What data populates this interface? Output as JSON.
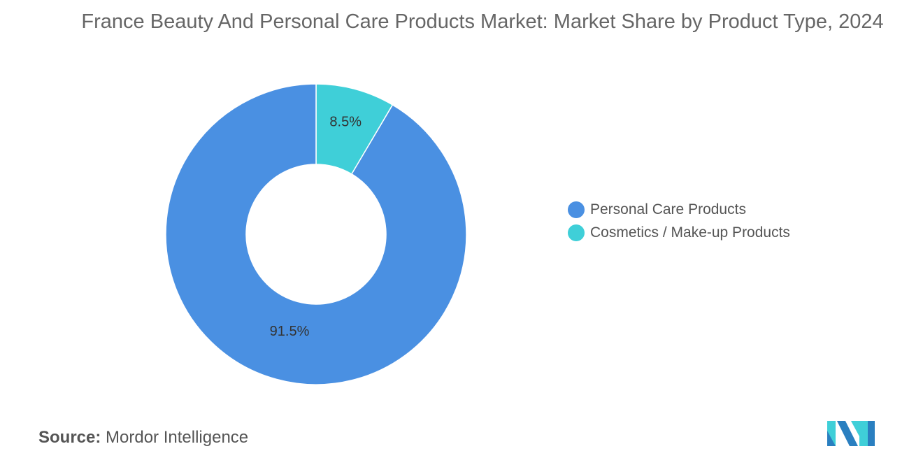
{
  "chart_data": {
    "type": "pie",
    "donut": true,
    "title": "France Beauty And Personal Care Products Market: Market Share by Product Type, 2024",
    "categories": [
      "Personal Care Products",
      "Cosmetics / Make-up Products"
    ],
    "values": [
      91.5,
      8.5
    ],
    "labels": [
      "91.5%",
      "8.5%"
    ],
    "colors": [
      "#4a90e2",
      "#3fcfd8"
    ],
    "legend_position": "right"
  },
  "source": {
    "label": "Source:",
    "value": "Mordor Intelligence"
  },
  "logo": {
    "name": "Mordor Intelligence logo",
    "colors": [
      "#2a7fc0",
      "#3fcfd8"
    ]
  }
}
